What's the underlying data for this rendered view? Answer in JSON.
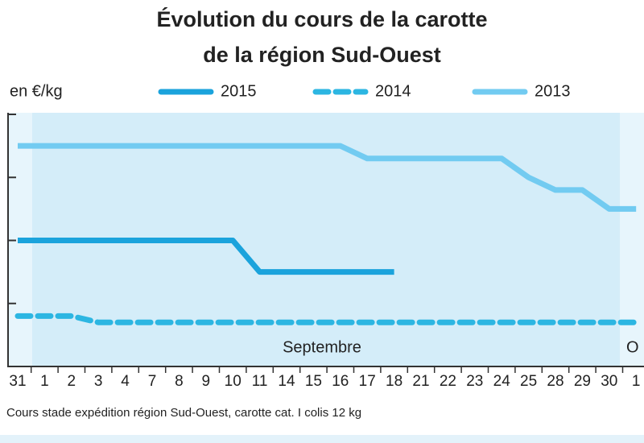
{
  "chart_data": {
    "type": "line",
    "title": [
      "Évolution du cours de la carotte",
      "de la région Sud-Ouest"
    ],
    "y_label": "en €/kg",
    "annotations": [
      "Septembre",
      "O"
    ],
    "note": "Cours stade expédition région Sud-Ouest, carotte cat. I colis 12 kg",
    "categories": [
      "31",
      "1",
      "2",
      "3",
      "4",
      "7",
      "8",
      "9",
      "10",
      "11",
      "14",
      "15",
      "16",
      "17",
      "18",
      "21",
      "22",
      "23",
      "24",
      "25",
      "28",
      "29",
      "30",
      "1"
    ],
    "ylim": [
      0,
      4
    ],
    "yticks": [
      1,
      2,
      3,
      4
    ],
    "series": [
      {
        "name": "2015",
        "color": "#1ba3dc",
        "dash": false,
        "values": [
          2.0,
          2.0,
          2.0,
          2.0,
          2.0,
          2.0,
          2.0,
          2.0,
          2.0,
          1.5,
          1.5,
          1.5,
          1.5,
          1.5,
          1.5,
          null,
          null,
          null,
          null,
          null,
          null,
          null,
          null,
          null
        ]
      },
      {
        "name": "2014",
        "color": "#2cb6e2",
        "dash": true,
        "values": [
          0.8,
          0.8,
          0.8,
          0.7,
          0.7,
          0.7,
          0.7,
          0.7,
          0.7,
          0.7,
          0.7,
          0.7,
          0.7,
          0.7,
          0.7,
          0.7,
          0.7,
          0.7,
          0.7,
          0.7,
          0.7,
          0.7,
          0.7,
          0.7
        ]
      },
      {
        "name": "2013",
        "color": "#72cbf1",
        "dash": false,
        "values": [
          3.5,
          3.5,
          3.5,
          3.5,
          3.5,
          3.5,
          3.5,
          3.5,
          3.5,
          3.5,
          3.5,
          3.5,
          3.5,
          3.3,
          3.3,
          3.3,
          3.3,
          3.3,
          3.3,
          3.0,
          2.8,
          2.8,
          2.5,
          2.5
        ]
      }
    ]
  }
}
